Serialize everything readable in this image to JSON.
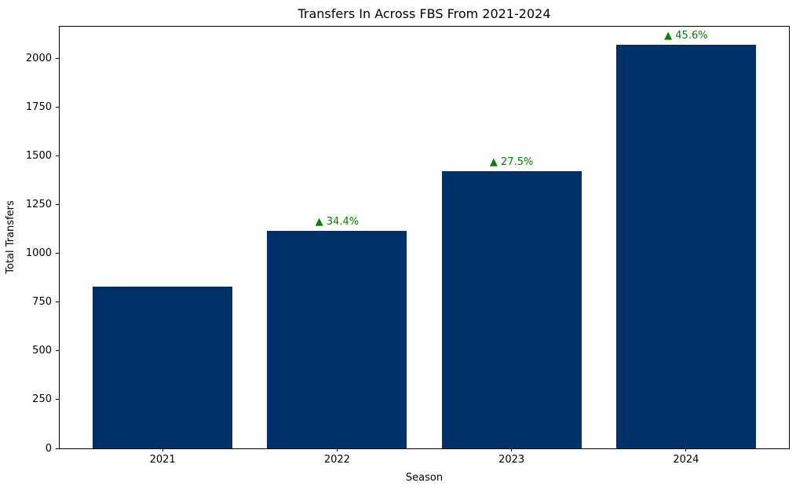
{
  "chart_data": {
    "type": "bar",
    "title": "Transfers In Across FBS From 2021-2024",
    "xlabel": "Season",
    "ylabel": "Total Transfers",
    "categories": [
      "2021",
      "2022",
      "2023",
      "2024"
    ],
    "values": [
      831,
      1117,
      1424,
      2073
    ],
    "annotations": [
      "",
      "▲ 34.4%",
      "▲ 27.5%",
      "▲ 45.6%"
    ],
    "yticks": [
      0,
      250,
      500,
      750,
      1000,
      1250,
      1500,
      1750,
      2000
    ],
    "ylim": [
      0,
      2165
    ],
    "bar_color": "#003068",
    "annotation_color": "#008000",
    "grid": false,
    "legend": null
  }
}
